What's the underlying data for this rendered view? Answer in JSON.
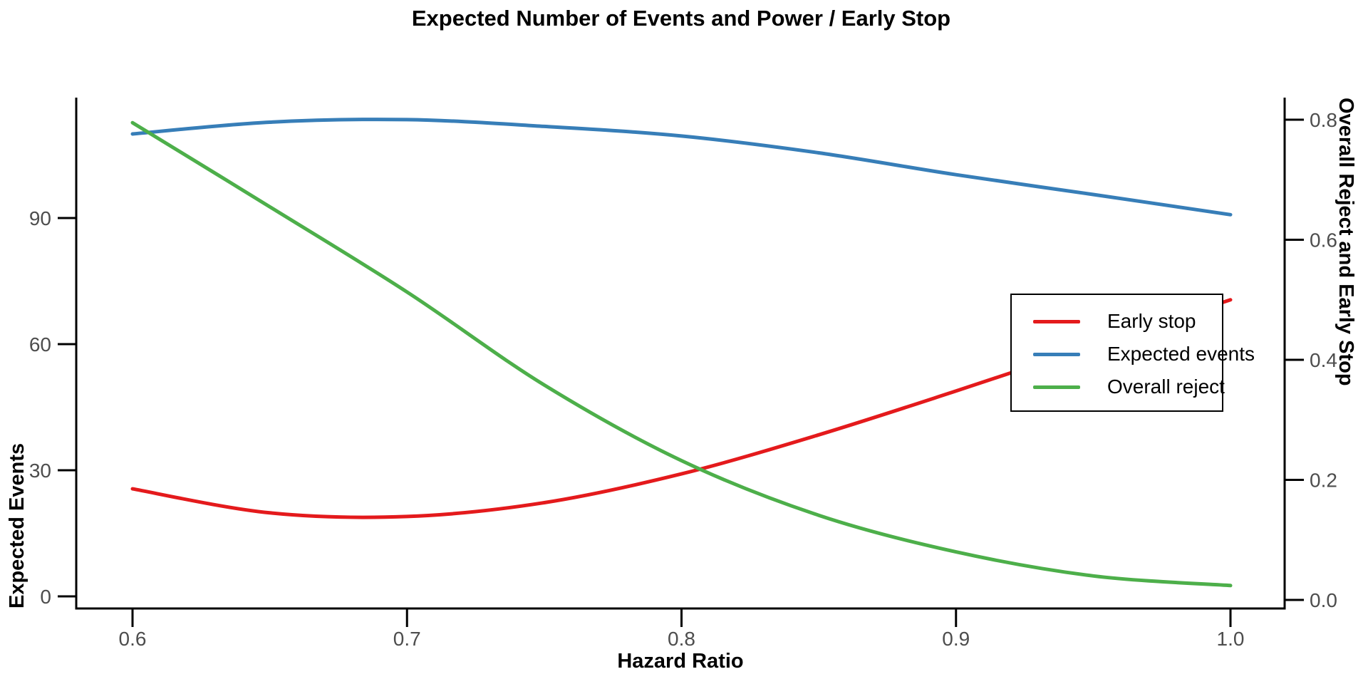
{
  "chart_data": {
    "type": "line",
    "title": "Expected Number of Events and Power / Early Stop",
    "xlabel": "Hazard Ratio",
    "grid": false,
    "background": "#FFFFFF",
    "legend_position": "right-center",
    "x": [
      0.6,
      0.65,
      0.7,
      0.75,
      0.8,
      0.85,
      0.9,
      0.95,
      1.0
    ],
    "x_ticks": [
      {
        "value": 0.6,
        "label": "0.6"
      },
      {
        "value": 0.7,
        "label": "0.7"
      },
      {
        "value": 0.8,
        "label": "0.8"
      },
      {
        "value": 0.9,
        "label": "0.9"
      },
      {
        "value": 1.0,
        "label": "1.0"
      }
    ],
    "x_range": [
      0.58,
      1.02
    ],
    "left_axis": {
      "label": "Expected Events",
      "range": [
        0,
        119
      ],
      "ticks": [
        {
          "value": 0,
          "label": "0"
        },
        {
          "value": 30,
          "label": "30"
        },
        {
          "value": 60,
          "label": "60"
        },
        {
          "value": 90,
          "label": "90"
        }
      ]
    },
    "right_axis": {
      "label": "Overall Reject and Early Stop",
      "range": [
        0,
        0.84
      ],
      "ticks": [
        {
          "value": 0.0,
          "label": "0.0"
        },
        {
          "value": 0.2,
          "label": "0.2"
        },
        {
          "value": 0.4,
          "label": "0.4"
        },
        {
          "value": 0.6,
          "label": "0.6"
        },
        {
          "value": 0.8,
          "label": "0.8"
        }
      ]
    },
    "series": [
      {
        "id": "early-stop",
        "name": "Early stop",
        "axis": "right",
        "color": "#E41A1C",
        "values": [
          0.185,
          0.145,
          0.139,
          0.162,
          0.21,
          0.275,
          0.348,
          0.424,
          0.5
        ]
      },
      {
        "id": "expected-events",
        "name": "Expected events",
        "axis": "left",
        "color": "#377EB8",
        "values": [
          110.0,
          112.8,
          113.4,
          111.8,
          109.5,
          105.5,
          100.3,
          95.6,
          90.8
        ]
      },
      {
        "id": "overall-reject",
        "name": "Overall reject",
        "axis": "right",
        "color": "#4DAF4A",
        "values": [
          0.795,
          0.655,
          0.513,
          0.358,
          0.232,
          0.141,
          0.08,
          0.04,
          0.024
        ]
      }
    ],
    "style": {
      "axis_color": "#000000",
      "tick_label_color": "#4D4D4D",
      "line_width": 5
    }
  }
}
